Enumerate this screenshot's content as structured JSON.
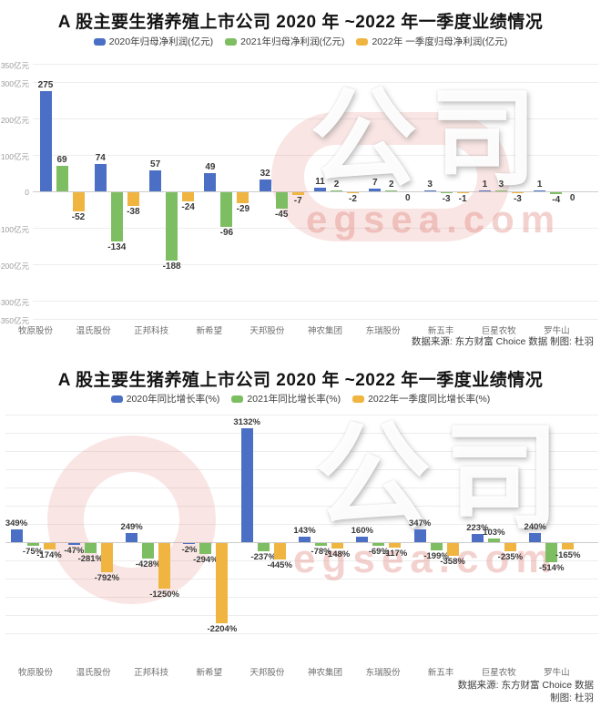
{
  "watermark": {
    "brand": "公司",
    "site": "egsea.com"
  },
  "chart_data": [
    {
      "type": "bar",
      "title": "A 股主要生猪养殖上市公司 2020 年 ~2022 年一季度业绩情况",
      "categories": [
        "牧原股份",
        "温氏股份",
        "正邦科技",
        "新希望",
        "天邦股份",
        "神农集团",
        "东瑞股份",
        "新五丰",
        "巨星农牧",
        "罗牛山"
      ],
      "series": [
        {
          "name": "2020年归母净利润(亿元)",
          "color": "#4a6fc4",
          "values": [
            275,
            74,
            57,
            49,
            32,
            11,
            7,
            3,
            1,
            1
          ]
        },
        {
          "name": "2021年归母净利润(亿元)",
          "color": "#7ebe62",
          "values": [
            69,
            -134,
            -188,
            -96,
            -45,
            2,
            2,
            -3,
            3,
            -4
          ]
        },
        {
          "name": "2022年 一季度归母净利润(亿元)",
          "color": "#f0b541",
          "values": [
            -52,
            -38,
            -24,
            -29,
            -7,
            -2,
            0,
            -1,
            -3,
            0
          ]
        }
      ],
      "value_suffix": "",
      "ylim": [
        -350,
        350
      ],
      "grid": true,
      "legend_position": "top",
      "yticks": [
        {
          "v": 350,
          "label": "350亿元"
        },
        {
          "v": 300,
          "label": "300亿元"
        },
        {
          "v": 200,
          "label": "200亿元"
        },
        {
          "v": 100,
          "label": "100亿元"
        },
        {
          "v": 0,
          "label": "0"
        },
        {
          "v": -100,
          "label": "-100亿元"
        },
        {
          "v": -200,
          "label": "-200亿元"
        },
        {
          "v": -300,
          "label": "-300亿元"
        },
        {
          "v": -350,
          "label": "-350亿元"
        }
      ],
      "source_lines": [
        "数据来源: 东方财富 Choice 数据 制图: 杜羽"
      ]
    },
    {
      "type": "bar",
      "title": "A 股主要生猪养殖上市公司 2020 年 ~2022 年一季度业绩情况",
      "categories": [
        "牧原股份",
        "温氏股份",
        "正邦科技",
        "新希望",
        "天邦股份",
        "神农集团",
        "东瑞股份",
        "新五丰",
        "巨星农牧",
        "罗牛山"
      ],
      "series": [
        {
          "name": "2020年同比增长率(%)",
          "color": "#4a6fc4",
          "values": [
            349,
            -47,
            249,
            -2,
            3132,
            143,
            160,
            347,
            223,
            240
          ]
        },
        {
          "name": "2021年同比增长率(%)",
          "color": "#7ebe62",
          "values": [
            -75,
            -281,
            -428,
            -294,
            -237,
            -78,
            -69,
            -199,
            103,
            -514
          ]
        },
        {
          "name": "2022年一季度同比增长率(%)",
          "color": "#f0b541",
          "values": [
            -174,
            -792,
            -1250,
            -2204,
            -445,
            -148,
            -117,
            -358,
            -235,
            -165
          ]
        }
      ],
      "value_suffix": "%",
      "ylim": [
        -2500,
        3500
      ],
      "ytick_interval": 500,
      "ytick_labels_visible": false,
      "grid": true,
      "legend_position": "top",
      "source_lines": [
        "数据来源: 东方财富 Choice 数据",
        "制图: 杜羽"
      ]
    }
  ]
}
